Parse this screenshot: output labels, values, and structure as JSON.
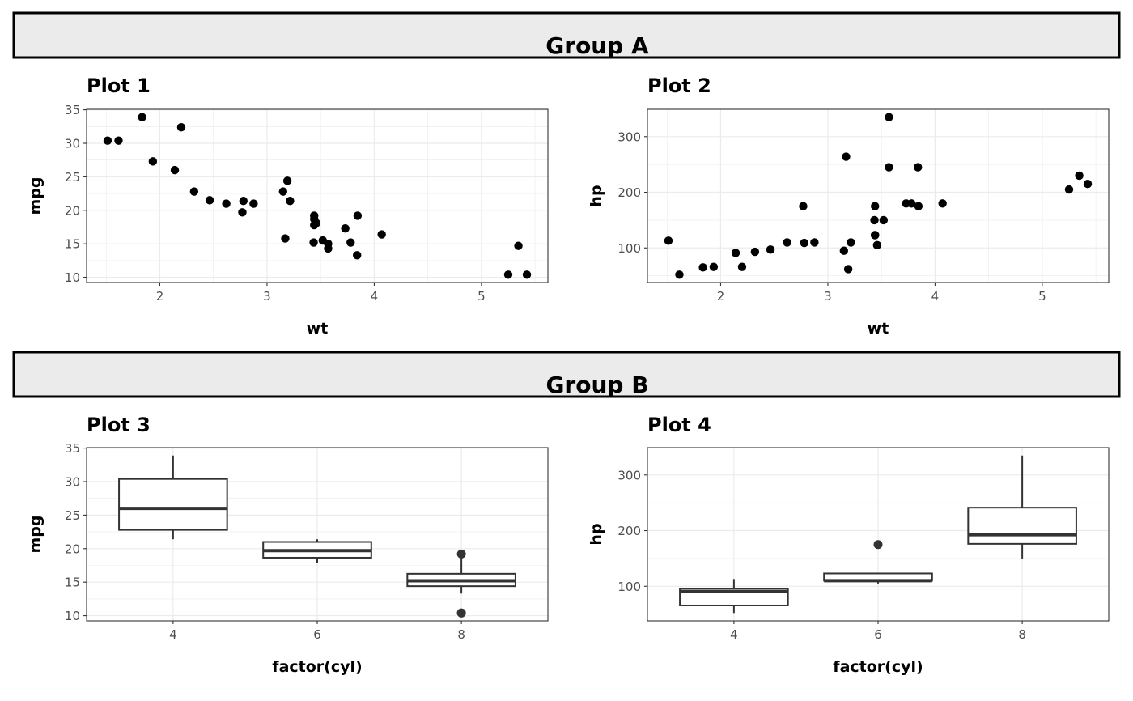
{
  "groups": [
    {
      "label": "Group A"
    },
    {
      "label": "Group B"
    }
  ],
  "mtcars": {
    "wt": [
      2.62,
      2.875,
      2.32,
      3.215,
      3.44,
      3.46,
      3.57,
      3.19,
      3.15,
      3.44,
      3.44,
      4.07,
      3.73,
      3.78,
      5.25,
      5.424,
      5.345,
      2.2,
      1.615,
      1.835,
      2.465,
      3.52,
      3.435,
      3.84,
      3.845,
      1.935,
      2.14,
      1.513,
      3.17,
      2.77,
      3.57,
      2.78
    ],
    "mpg": [
      21.0,
      21.0,
      22.8,
      21.4,
      18.7,
      18.1,
      14.3,
      24.4,
      22.8,
      19.2,
      17.8,
      16.4,
      17.3,
      15.2,
      10.4,
      10.4,
      14.7,
      32.4,
      30.4,
      33.9,
      21.5,
      15.5,
      15.2,
      13.3,
      19.2,
      27.3,
      26.0,
      30.4,
      15.8,
      19.7,
      15.0,
      21.4
    ],
    "hp": [
      110,
      110,
      93,
      110,
      175,
      105,
      245,
      62,
      95,
      123,
      123,
      180,
      180,
      180,
      205,
      215,
      230,
      66,
      52,
      65,
      97,
      150,
      150,
      245,
      175,
      66,
      91,
      113,
      264,
      175,
      335,
      109
    ],
    "cyl": [
      6,
      6,
      4,
      6,
      8,
      6,
      8,
      4,
      4,
      6,
      6,
      8,
      8,
      8,
      8,
      8,
      8,
      4,
      4,
      4,
      4,
      8,
      8,
      8,
      8,
      4,
      4,
      4,
      8,
      6,
      8,
      4
    ]
  },
  "chart_data": [
    {
      "type": "scatter",
      "title": "Plot 1",
      "xlabel": "wt",
      "ylabel": "mpg",
      "x": "wt",
      "y": "mpg",
      "xlim": [
        1.317,
        5.62
      ],
      "ylim": [
        9.225,
        35.075
      ],
      "xticks": [
        2,
        3,
        4,
        5
      ],
      "yticks": [
        10,
        15,
        20,
        25,
        30,
        35
      ],
      "grid": true
    },
    {
      "type": "scatter",
      "title": "Plot 2",
      "xlabel": "wt",
      "ylabel": "hp",
      "x": "wt",
      "y": "hp",
      "xlim": [
        1.317,
        5.62
      ],
      "ylim": [
        37.85,
        349.15
      ],
      "xticks": [
        2,
        3,
        4,
        5
      ],
      "yticks": [
        100,
        200,
        300
      ],
      "grid": true
    },
    {
      "type": "box",
      "title": "Plot 3",
      "xlabel": "factor(cyl)",
      "ylabel": "mpg",
      "group": "cyl",
      "y": "mpg",
      "categories": [
        "4",
        "6",
        "8"
      ],
      "ylim": [
        9.225,
        35.075
      ],
      "yticks": [
        10,
        15,
        20,
        25,
        30,
        35
      ],
      "grid": true
    },
    {
      "type": "box",
      "title": "Plot 4",
      "xlabel": "factor(cyl)",
      "ylabel": "hp",
      "group": "cyl",
      "y": "hp",
      "categories": [
        "4",
        "6",
        "8"
      ],
      "ylim": [
        37.85,
        349.15
      ],
      "yticks": [
        100,
        200,
        300
      ],
      "grid": true
    }
  ]
}
